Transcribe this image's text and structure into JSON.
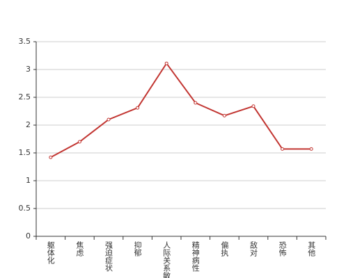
{
  "chart_data": {
    "type": "line",
    "categories": [
      "躯体化",
      "焦虑",
      "强迫症状",
      "抑郁",
      "人际关系敏感",
      "精神病性",
      "偏执",
      "敌对",
      "恐怖",
      "其他"
    ],
    "values": [
      1.42,
      1.7,
      2.1,
      2.31,
      3.11,
      2.4,
      2.17,
      2.34,
      1.57,
      1.57
    ],
    "color": "#c23531",
    "ylim": [
      0,
      3.5
    ],
    "yticks": [
      0,
      0.5,
      1,
      1.5,
      2,
      2.5,
      3,
      3.5
    ],
    "grid": true
  }
}
